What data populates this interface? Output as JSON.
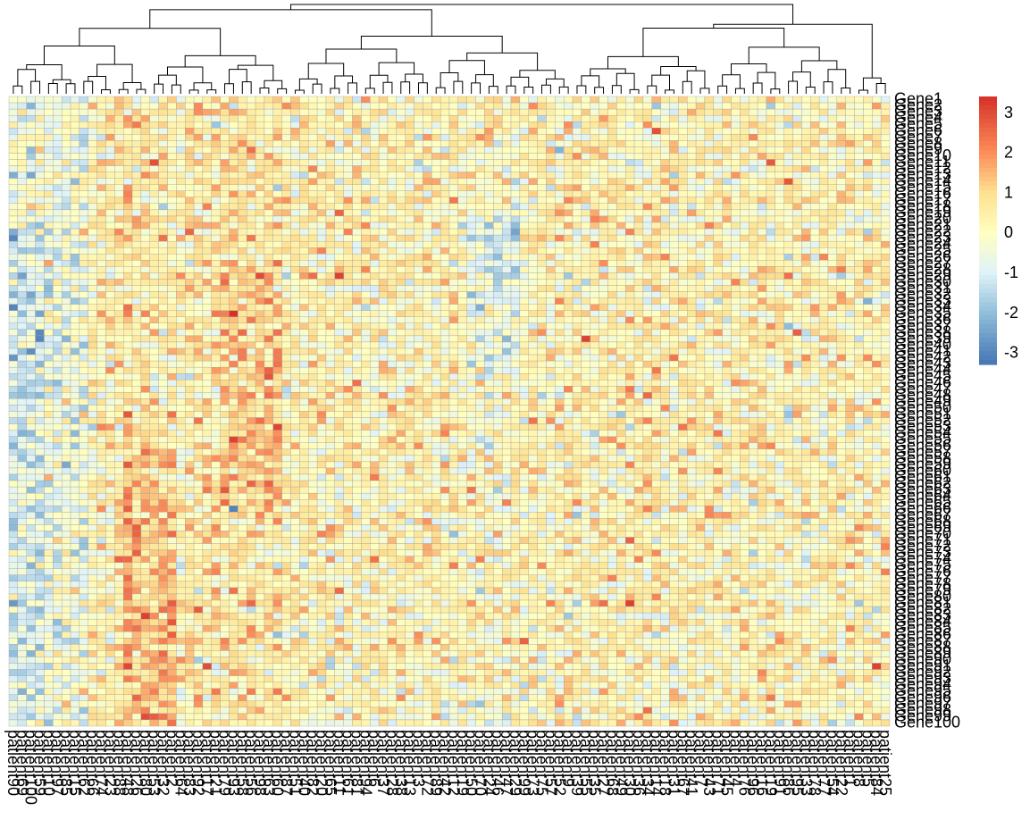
{
  "chart_data": {
    "type": "heatmap",
    "rows": [
      "Gene1",
      "Gene2",
      "Gene3",
      "Gene4",
      "Gene5",
      "Gene6",
      "Gene7",
      "Gene8",
      "Gene9",
      "Gene10",
      "Gene11",
      "Gene12",
      "Gene13",
      "Gene14",
      "Gene15",
      "Gene16",
      "Gene17",
      "Gene18",
      "Gene19",
      "Gene20",
      "Gene21",
      "Gene22",
      "Gene23",
      "Gene24",
      "Gene25",
      "Gene26",
      "Gene27",
      "Gene28",
      "Gene29",
      "Gene30",
      "Gene31",
      "Gene32",
      "Gene33",
      "Gene34",
      "Gene35",
      "Gene36",
      "Gene37",
      "Gene38",
      "Gene39",
      "Gene40",
      "Gene41",
      "Gene42",
      "Gene43",
      "Gene44",
      "Gene45",
      "Gene46",
      "Gene47",
      "Gene48",
      "Gene49",
      "Gene50",
      "Gene51",
      "Gene52",
      "Gene53",
      "Gene54",
      "Gene55",
      "Gene56",
      "Gene57",
      "Gene58",
      "Gene59",
      "Gene60",
      "Gene61",
      "Gene62",
      "Gene63",
      "Gene64",
      "Gene65",
      "Gene66",
      "Gene67",
      "Gene68",
      "Gene69",
      "Gene70",
      "Gene71",
      "Gene72",
      "Gene73",
      "Gene74",
      "Gene75",
      "Gene76",
      "Gene77",
      "Gene78",
      "Gene79",
      "Gene80",
      "Gene81",
      "Gene82",
      "Gene83",
      "Gene84",
      "Gene85",
      "Gene86",
      "Gene87",
      "Gene88",
      "Gene89",
      "Gene90",
      "Gene91",
      "Gene92",
      "Gene93",
      "Gene94",
      "Gene95",
      "Gene96",
      "Gene97",
      "Gene98",
      "Gene99",
      "Gene100"
    ],
    "columns": [
      "patient90",
      "patient69",
      "patient100",
      "patient59",
      "patient10",
      "patient97",
      "patient85",
      "patient15",
      "patient62",
      "patient66",
      "patient74",
      "patient23",
      "patient88",
      "patient48",
      "patient26",
      "patient80",
      "patient53",
      "patient32",
      "patient2",
      "patient64",
      "patient83",
      "patient92",
      "patient17",
      "patient21",
      "patient79",
      "patient93",
      "patient58",
      "patient56",
      "patient98",
      "patient63",
      "patient60",
      "patient87",
      "patient51",
      "patient40",
      "patient82",
      "patient20",
      "patient65",
      "patient11",
      "patient61",
      "patient81",
      "patient94",
      "patient6",
      "patient37",
      "patient28",
      "patient38",
      "patient13",
      "patient3",
      "patient72",
      "patient89",
      "patient42",
      "patient12",
      "patient19",
      "patient50",
      "patient70",
      "patient24",
      "patient46",
      "patient47",
      "patient29",
      "patient99",
      "patient73",
      "patient75",
      "patient57",
      "patient52",
      "patient9",
      "patient39",
      "patient55",
      "patient35",
      "patient27",
      "patient68",
      "patient49",
      "patient30",
      "patient36",
      "patient34",
      "patient14",
      "patient18",
      "patient31",
      "patient67",
      "patient41",
      "patient7",
      "patient43",
      "patient71",
      "patient45",
      "patient4",
      "patient76",
      "patient96",
      "patient16",
      "patient19",
      "patient91",
      "patient86",
      "patient95",
      "patient33",
      "patient78",
      "patient77",
      "patient54",
      "patient22",
      "patient1",
      "patient8",
      "patient5",
      "patient84",
      "patient25",
      "patient44",
      "patient43",
      "patient96",
      "patient60",
      "patient44",
      "patient50",
      "patient84",
      "patient12",
      "patient25",
      "patient52",
      "patient33",
      "patient2"
    ],
    "values_note": "",
    "value_range": [
      -3.3,
      3.4
    ],
    "cluster_rows": false,
    "cluster_columns": true,
    "legend": {
      "position": "right",
      "ticks": [
        3,
        2,
        1,
        0,
        -1,
        -2,
        -3
      ],
      "tick_labels": [
        "3",
        "2",
        "1",
        "0",
        "-1",
        "-2",
        "-3"
      ],
      "colors": [
        "#4575b4",
        "#91bfdb",
        "#e0f3f8",
        "#ffffbf",
        "#fee090",
        "#fc8d59",
        "#d73027"
      ]
    },
    "title": "",
    "xlabel": "",
    "ylabel": ""
  }
}
